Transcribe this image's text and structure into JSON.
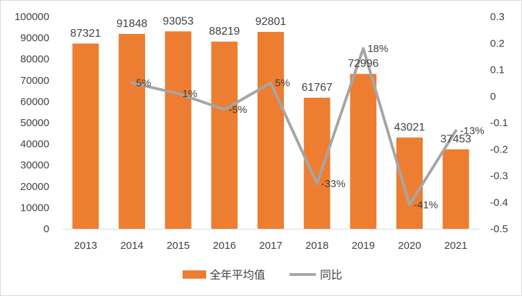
{
  "chart_data": {
    "type": "bar",
    "categories": [
      "2013",
      "2014",
      "2015",
      "2016",
      "2017",
      "2018",
      "2019",
      "2020",
      "2021"
    ],
    "series": [
      {
        "name": "全年平均值",
        "type": "bar",
        "axis": "left",
        "color": "#ED7D31",
        "values": [
          87321,
          91848,
          93053,
          88219,
          92801,
          61767,
          72996,
          43021,
          37453
        ],
        "labels": [
          "87321",
          "91848",
          "93053",
          "88219",
          "92801",
          "61767",
          "72996",
          "43021",
          "37453"
        ]
      },
      {
        "name": "同比",
        "type": "line",
        "axis": "right",
        "color": "#A5A5A5",
        "values": [
          null,
          0.05,
          0.01,
          -0.05,
          0.05,
          -0.33,
          0.18,
          -0.41,
          -0.13
        ],
        "labels": [
          "",
          "5%",
          "1%",
          "-5%",
          "5%",
          "-33%",
          "18%",
          "-41%",
          "-13%"
        ]
      }
    ],
    "y_left": {
      "min": 0,
      "max": 100000,
      "ticks": [
        "0",
        "10000",
        "20000",
        "30000",
        "40000",
        "50000",
        "60000",
        "70000",
        "80000",
        "90000",
        "100000"
      ]
    },
    "y_right": {
      "min": -0.5,
      "max": 0.3,
      "ticks": [
        "-0.5",
        "-0.4",
        "-0.3",
        "-0.2",
        "-0.1",
        "0",
        "0.1",
        "0.2",
        "0.3"
      ]
    },
    "grid": false,
    "legend": "bottom"
  }
}
